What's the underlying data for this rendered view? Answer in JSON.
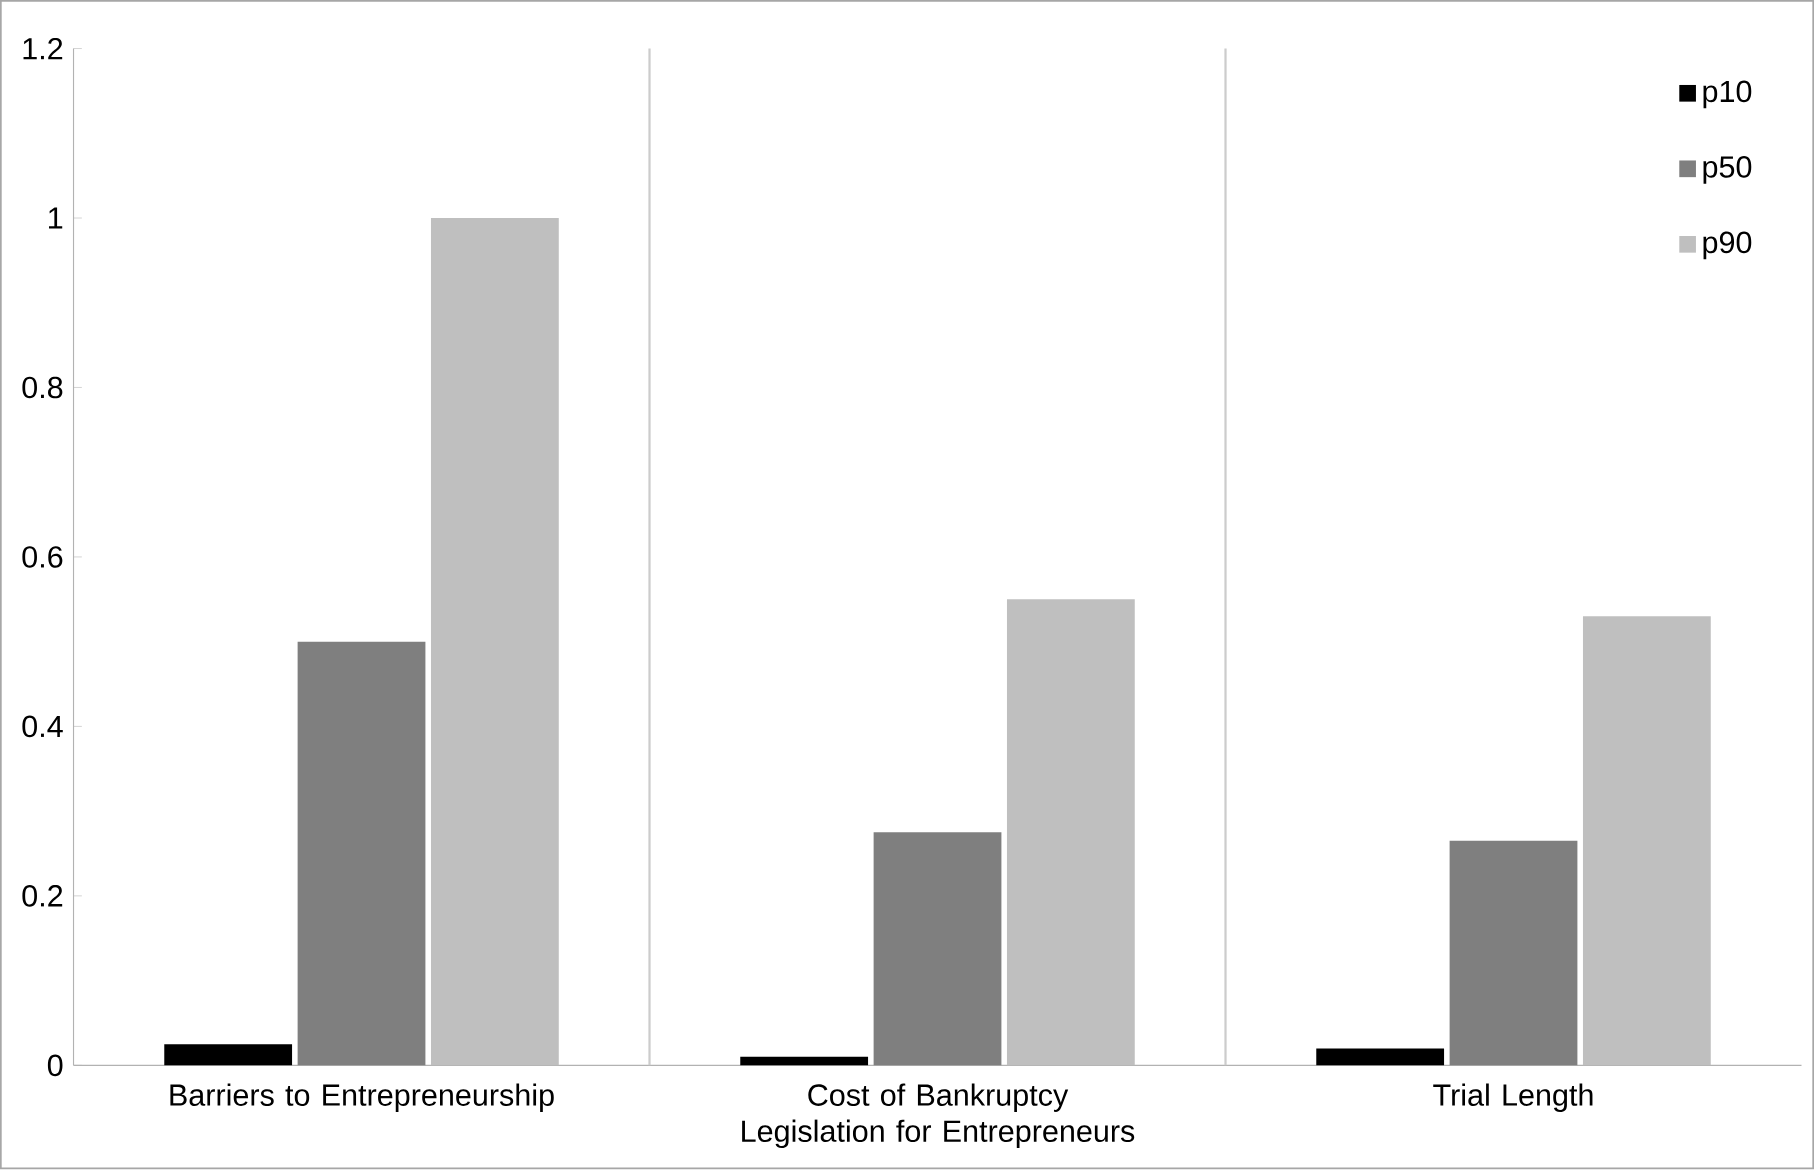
{
  "chart_data": {
    "type": "bar",
    "categories": [
      "Barriers to Entrepreneurship",
      "Cost of Bankruptcy Legislation for Entrepreneurs",
      "Trial Length"
    ],
    "series": [
      {
        "name": "p10",
        "color": "#000000",
        "values": [
          0.025,
          0.01,
          0.02
        ]
      },
      {
        "name": "p50",
        "color": "#7f7f7f",
        "values": [
          0.5,
          0.275,
          0.265
        ]
      },
      {
        "name": "p90",
        "color": "#bfbfbf",
        "values": [
          1.0,
          0.55,
          0.53
        ]
      }
    ],
    "ylim": [
      0,
      1.2
    ],
    "yticks": [
      0,
      0.2,
      0.4,
      0.6,
      0.8,
      1,
      1.2
    ],
    "grid": "x",
    "legend": "top right"
  }
}
